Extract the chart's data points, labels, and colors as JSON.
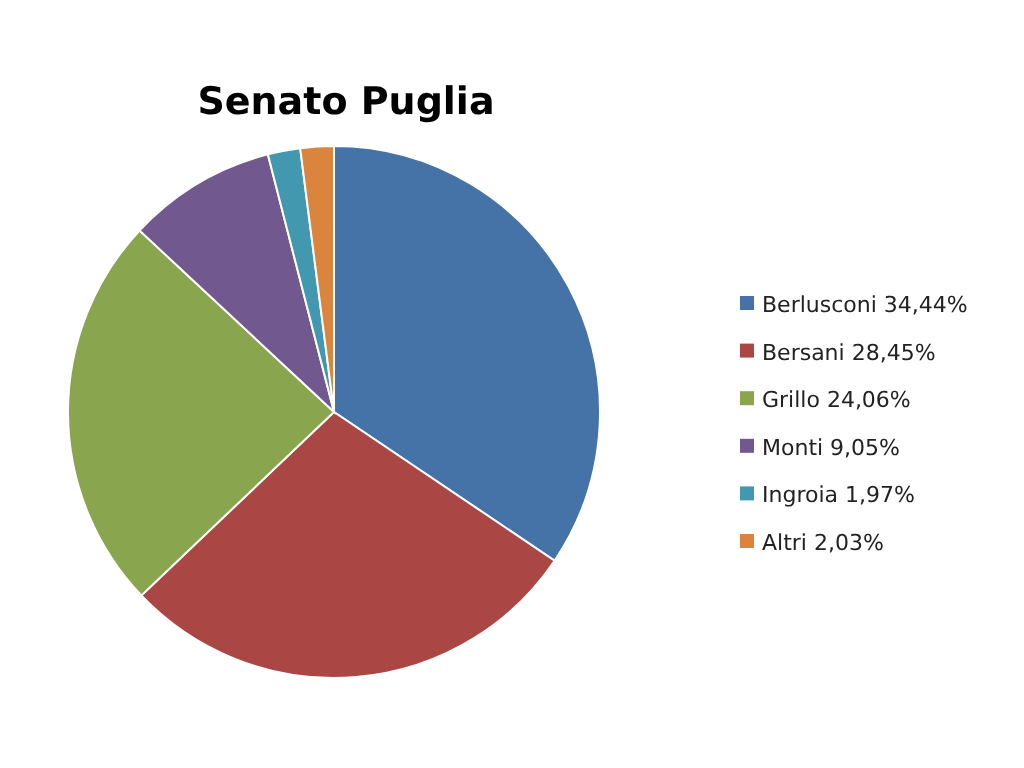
{
  "chart_data": {
    "type": "pie",
    "title": "Senato Puglia",
    "categories": [
      "Berlusconi",
      "Bersani",
      "Grillo",
      "Monti",
      "Ingroia",
      "Altri"
    ],
    "values": [
      34.44,
      28.45,
      24.06,
      9.05,
      1.97,
      2.03
    ],
    "value_labels": [
      "34,44%",
      "28,45%",
      "24,06%",
      "9,05%",
      "1,97%",
      "2,03%"
    ],
    "colors": [
      "#4572a7",
      "#aa4643",
      "#89a54e",
      "#71588f",
      "#4198af",
      "#db843d"
    ],
    "legend": "right"
  }
}
